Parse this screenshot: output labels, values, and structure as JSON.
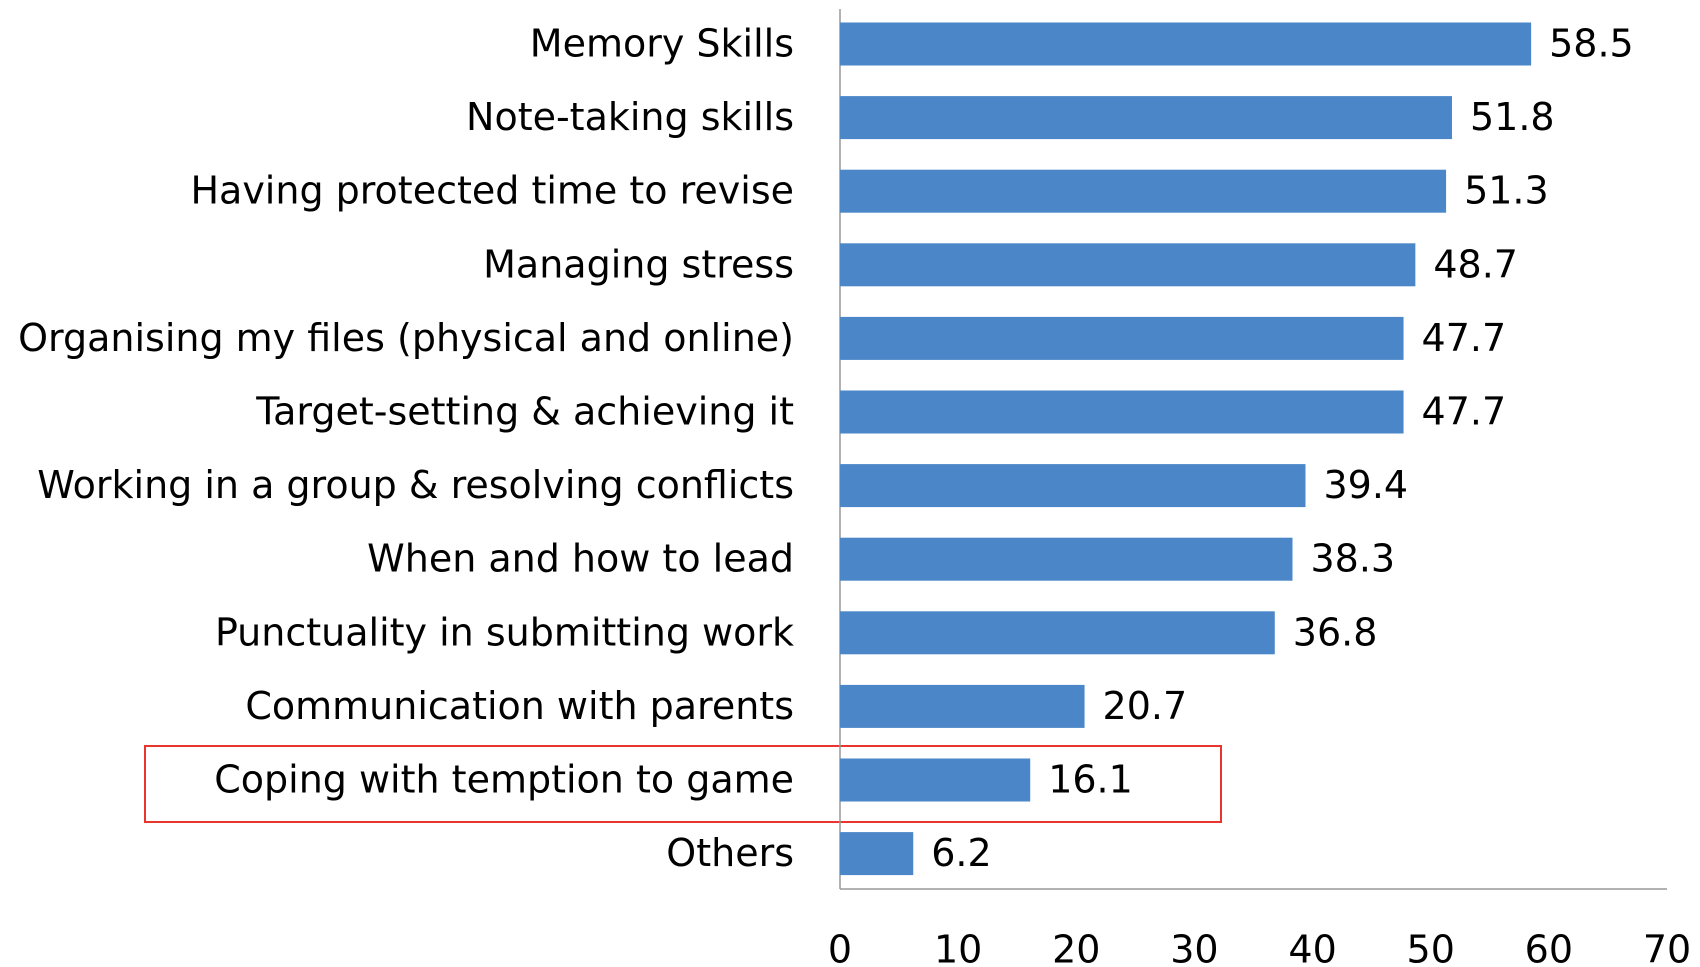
{
  "chart_data": {
    "type": "bar",
    "orientation": "horizontal",
    "categories": [
      "Memory Skills",
      "Note-taking skills",
      "Having protected time to revise",
      "Managing stress",
      "Organising my files (physical and online)",
      "Target-setting & achieving it",
      "Working in a group & resolving conflicts",
      "When and how to lead",
      "Punctuality in submitting work",
      "Communication with parents",
      "Coping with temption to game",
      "Others"
    ],
    "values": [
      58.5,
      51.8,
      51.3,
      48.7,
      47.7,
      47.7,
      39.4,
      38.3,
      36.8,
      20.7,
      16.1,
      6.2
    ],
    "color": "#4a86c8",
    "xlim": [
      0,
      70
    ],
    "xticks": [
      0,
      10,
      20,
      30,
      40,
      50,
      60,
      70
    ],
    "grid": false
  }
}
